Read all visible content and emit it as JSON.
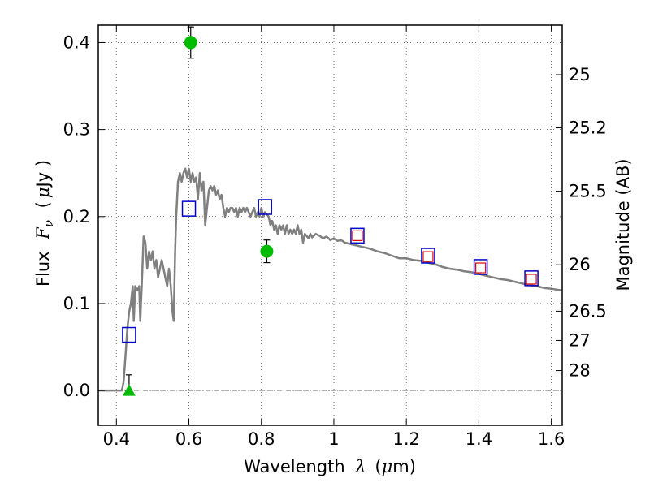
{
  "chart_data": {
    "type": "scatter",
    "title": "",
    "xlabel": "Wavelength",
    "xlabel_symbol": "λ",
    "xlabel_unit_open": "(",
    "xlabel_unit_mu": "μ",
    "xlabel_unit_rest": "m)",
    "ylabel_left": "Flux",
    "ylabel_left_symbol": "F",
    "ylabel_left_sub": "ν",
    "ylabel_left_unit_open": "(",
    "ylabel_left_unit_mu": "μ",
    "ylabel_left_unit_rest": "Jy )",
    "ylabel_right": "Magnitude (AB)",
    "xlim": [
      0.35,
      1.63
    ],
    "ylim": [
      -0.04,
      0.42
    ],
    "grid": true,
    "x_ticks": [
      0.4,
      0.6,
      0.8,
      1.0,
      1.2,
      1.4,
      1.6
    ],
    "x_tick_labels": [
      "0.4",
      "0.6",
      "0.8",
      "1",
      "1.2",
      "1.4",
      "1.6"
    ],
    "y_ticks": [
      0.0,
      0.1,
      0.2,
      0.3,
      0.4
    ],
    "y_tick_labels": [
      "0.0",
      "0.1",
      "0.2",
      "0.3",
      "0.4"
    ],
    "right_ticks": [
      {
        "mag": 25,
        "label": "25"
      },
      {
        "mag": 25.2,
        "label": "25.2"
      },
      {
        "mag": 25.5,
        "label": "25.5"
      },
      {
        "mag": 26,
        "label": "26"
      },
      {
        "mag": 26.5,
        "label": "26.5"
      },
      {
        "mag": 27,
        "label": "27"
      },
      {
        "mag": 28,
        "label": "28"
      }
    ],
    "series": [
      {
        "kind": "line",
        "color": "#808080",
        "points": [
          [
            0.35,
            0.0
          ],
          [
            0.41,
            0.0
          ],
          [
            0.415,
            0.0
          ],
          [
            0.42,
            0.01
          ],
          [
            0.425,
            0.04
          ],
          [
            0.43,
            0.07
          ],
          [
            0.435,
            0.09
          ],
          [
            0.44,
            0.1
          ],
          [
            0.445,
            0.12
          ],
          [
            0.448,
            0.08
          ],
          [
            0.452,
            0.12
          ],
          [
            0.458,
            0.115
          ],
          [
            0.463,
            0.12
          ],
          [
            0.466,
            0.08
          ],
          [
            0.47,
            0.12
          ],
          [
            0.475,
            0.177
          ],
          [
            0.48,
            0.17
          ],
          [
            0.485,
            0.14
          ],
          [
            0.49,
            0.16
          ],
          [
            0.495,
            0.15
          ],
          [
            0.5,
            0.16
          ],
          [
            0.505,
            0.14
          ],
          [
            0.51,
            0.15
          ],
          [
            0.515,
            0.13
          ],
          [
            0.52,
            0.14
          ],
          [
            0.525,
            0.15
          ],
          [
            0.53,
            0.14
          ],
          [
            0.535,
            0.13
          ],
          [
            0.54,
            0.12
          ],
          [
            0.545,
            0.14
          ],
          [
            0.55,
            0.12
          ],
          [
            0.555,
            0.09
          ],
          [
            0.558,
            0.08
          ],
          [
            0.562,
            0.16
          ],
          [
            0.565,
            0.2
          ],
          [
            0.57,
            0.24
          ],
          [
            0.575,
            0.25
          ],
          [
            0.58,
            0.24
          ],
          [
            0.585,
            0.25
          ],
          [
            0.59,
            0.255
          ],
          [
            0.595,
            0.245
          ],
          [
            0.6,
            0.255
          ],
          [
            0.605,
            0.24
          ],
          [
            0.61,
            0.25
          ],
          [
            0.615,
            0.24
          ],
          [
            0.62,
            0.245
          ],
          [
            0.625,
            0.22
          ],
          [
            0.63,
            0.25
          ],
          [
            0.635,
            0.23
          ],
          [
            0.64,
            0.24
          ],
          [
            0.645,
            0.19
          ],
          [
            0.65,
            0.21
          ],
          [
            0.655,
            0.23
          ],
          [
            0.66,
            0.235
          ],
          [
            0.665,
            0.23
          ],
          [
            0.67,
            0.235
          ],
          [
            0.675,
            0.225
          ],
          [
            0.68,
            0.23
          ],
          [
            0.685,
            0.22
          ],
          [
            0.69,
            0.225
          ],
          [
            0.695,
            0.21
          ],
          [
            0.7,
            0.2
          ],
          [
            0.705,
            0.21
          ],
          [
            0.71,
            0.205
          ],
          [
            0.715,
            0.21
          ],
          [
            0.72,
            0.21
          ],
          [
            0.725,
            0.205
          ],
          [
            0.73,
            0.21
          ],
          [
            0.735,
            0.2
          ],
          [
            0.74,
            0.21
          ],
          [
            0.745,
            0.205
          ],
          [
            0.75,
            0.21
          ],
          [
            0.755,
            0.205
          ],
          [
            0.76,
            0.21
          ],
          [
            0.765,
            0.205
          ],
          [
            0.77,
            0.2
          ],
          [
            0.775,
            0.205
          ],
          [
            0.78,
            0.21
          ],
          [
            0.785,
            0.2
          ],
          [
            0.79,
            0.205
          ],
          [
            0.795,
            0.2
          ],
          [
            0.8,
            0.21
          ],
          [
            0.805,
            0.2
          ],
          [
            0.81,
            0.205
          ],
          [
            0.82,
            0.2
          ],
          [
            0.825,
            0.19
          ],
          [
            0.83,
            0.195
          ],
          [
            0.835,
            0.185
          ],
          [
            0.84,
            0.19
          ],
          [
            0.845,
            0.18
          ],
          [
            0.85,
            0.19
          ],
          [
            0.855,
            0.185
          ],
          [
            0.86,
            0.19
          ],
          [
            0.865,
            0.18
          ],
          [
            0.87,
            0.19
          ],
          [
            0.875,
            0.18
          ],
          [
            0.88,
            0.185
          ],
          [
            0.885,
            0.18
          ],
          [
            0.89,
            0.185
          ],
          [
            0.895,
            0.18
          ],
          [
            0.9,
            0.19
          ],
          [
            0.905,
            0.18
          ],
          [
            0.91,
            0.185
          ],
          [
            0.915,
            0.17
          ],
          [
            0.92,
            0.18
          ],
          [
            0.93,
            0.175
          ],
          [
            0.935,
            0.18
          ],
          [
            0.94,
            0.176
          ],
          [
            0.95,
            0.18
          ],
          [
            0.96,
            0.178
          ],
          [
            0.97,
            0.175
          ],
          [
            0.98,
            0.177
          ],
          [
            0.99,
            0.173
          ],
          [
            1.0,
            0.175
          ],
          [
            1.01,
            0.172
          ],
          [
            1.02,
            0.173
          ],
          [
            1.03,
            0.17
          ],
          [
            1.05,
            0.168
          ],
          [
            1.06,
            0.167
          ],
          [
            1.08,
            0.165
          ],
          [
            1.1,
            0.163
          ],
          [
            1.12,
            0.16
          ],
          [
            1.14,
            0.158
          ],
          [
            1.16,
            0.155
          ],
          [
            1.18,
            0.152
          ],
          [
            1.2,
            0.152
          ],
          [
            1.22,
            0.15
          ],
          [
            1.24,
            0.149
          ],
          [
            1.26,
            0.147
          ],
          [
            1.28,
            0.145
          ],
          [
            1.3,
            0.142
          ],
          [
            1.32,
            0.14
          ],
          [
            1.34,
            0.139
          ],
          [
            1.36,
            0.137
          ],
          [
            1.38,
            0.136
          ],
          [
            1.4,
            0.134
          ],
          [
            1.42,
            0.132
          ],
          [
            1.44,
            0.13
          ],
          [
            1.46,
            0.128
          ],
          [
            1.48,
            0.127
          ],
          [
            1.5,
            0.125
          ],
          [
            1.52,
            0.123
          ],
          [
            1.54,
            0.121
          ],
          [
            1.56,
            0.12
          ],
          [
            1.58,
            0.118
          ],
          [
            1.6,
            0.117
          ],
          [
            1.63,
            0.115
          ]
        ]
      },
      {
        "kind": "model-photometry-squares",
        "color": "#0000cc",
        "x": [
          0.435,
          0.6,
          0.81,
          1.065,
          1.26,
          1.405,
          1.545
        ],
        "y": [
          0.064,
          0.209,
          0.211,
          0.178,
          0.155,
          0.142,
          0.129
        ]
      },
      {
        "kind": "observed-squares",
        "color": "#dd0000",
        "x": [
          1.065,
          1.26,
          1.405,
          1.545
        ],
        "y": [
          0.178,
          0.154,
          0.141,
          0.128
        ]
      },
      {
        "kind": "observed-points",
        "color": "#00bb00",
        "x": [
          0.605,
          0.815
        ],
        "y": [
          0.4,
          0.16
        ],
        "yerr": [
          0.018,
          0.013
        ]
      },
      {
        "kind": "upper-limit",
        "color": "#00bb00",
        "x": [
          0.435
        ],
        "y": [
          0.0
        ],
        "yerr_top": [
          0.018
        ]
      }
    ]
  }
}
